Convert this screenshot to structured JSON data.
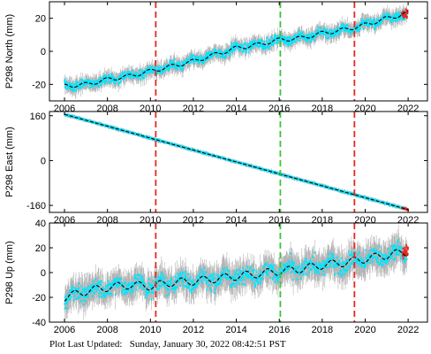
{
  "chart_data": [
    {
      "type": "scatter",
      "ylabel": "P298 North (mm)",
      "xlim": [
        2005.3,
        2022.9
      ],
      "ylim": [
        -30,
        30
      ],
      "xticks": [
        2006,
        2008,
        2010,
        2012,
        2014,
        2016,
        2018,
        2020,
        2022
      ],
      "yticks": [
        -20,
        0,
        20
      ],
      "event_lines": [
        {
          "x": 2010.25,
          "color": "#e8271f"
        },
        {
          "x": 2016.05,
          "color": "#3cc43c"
        },
        {
          "x": 2019.5,
          "color": "#e8271f"
        }
      ],
      "trend": {
        "x": [
          2006.0,
          2007.0,
          2008.0,
          2009.0,
          2010.0,
          2011.0,
          2012.0,
          2013.0,
          2014.0,
          2015.0,
          2016.0,
          2017.0,
          2018.0,
          2019.0,
          2020.0,
          2021.0,
          2022.0
        ],
        "y": [
          -21,
          -20,
          -17,
          -15,
          -12,
          -9,
          -6,
          -2,
          2,
          4,
          7,
          8,
          11,
          13,
          16,
          20,
          23
        ]
      },
      "colors": {
        "points": "#00e5ff",
        "errorbars": "#b4b4b4",
        "model": "#000000",
        "recent": "#e8271f"
      }
    },
    {
      "type": "scatter",
      "ylabel": "P298 East (mm)",
      "xlim": [
        2005.3,
        2022.9
      ],
      "ylim": [
        -185,
        175
      ],
      "xticks": [
        2006,
        2008,
        2010,
        2012,
        2014,
        2016,
        2018,
        2020,
        2022
      ],
      "yticks": [
        -160,
        0,
        160
      ],
      "event_lines": [
        {
          "x": 2010.25,
          "color": "#e8271f"
        },
        {
          "x": 2016.05,
          "color": "#3cc43c"
        },
        {
          "x": 2019.5,
          "color": "#e8271f"
        }
      ],
      "trend": {
        "x": [
          2006.0,
          2022.0
        ],
        "y": [
          165,
          -175
        ]
      },
      "colors": {
        "points": "#00e5ff",
        "errorbars": "#b4b4b4",
        "model": "#000000",
        "recent": "#e8271f"
      }
    },
    {
      "type": "scatter",
      "ylabel": "P298 Up (mm)",
      "xlim": [
        2005.3,
        2022.9
      ],
      "ylim": [
        -40,
        40
      ],
      "xticks": [
        2006,
        2008,
        2010,
        2012,
        2014,
        2016,
        2018,
        2020,
        2022
      ],
      "yticks": [
        -40,
        -20,
        0,
        20,
        40
      ],
      "event_lines": [
        {
          "x": 2010.25,
          "color": "#e8271f"
        },
        {
          "x": 2016.05,
          "color": "#3cc43c"
        },
        {
          "x": 2019.5,
          "color": "#e8271f"
        }
      ],
      "trend": {
        "x": [
          2006.0,
          2007.0,
          2008.0,
          2009.0,
          2010.0,
          2011.0,
          2012.0,
          2013.0,
          2014.0,
          2015.0,
          2016.0,
          2017.0,
          2018.0,
          2019.0,
          2020.0,
          2021.0,
          2022.0
        ],
        "y": [
          -20,
          -15,
          -12,
          -10,
          -11,
          -8,
          -7,
          -5,
          -3,
          -1,
          1,
          3,
          6,
          8,
          11,
          14,
          17
        ]
      },
      "colors": {
        "points": "#00e5ff",
        "errorbars": "#b4b4b4",
        "model": "#000000",
        "recent": "#e8271f"
      }
    }
  ],
  "footer": {
    "label": "Plot Last Updated:",
    "timestamp": "Sunday, January 30, 2022 08:42:51 PST"
  }
}
